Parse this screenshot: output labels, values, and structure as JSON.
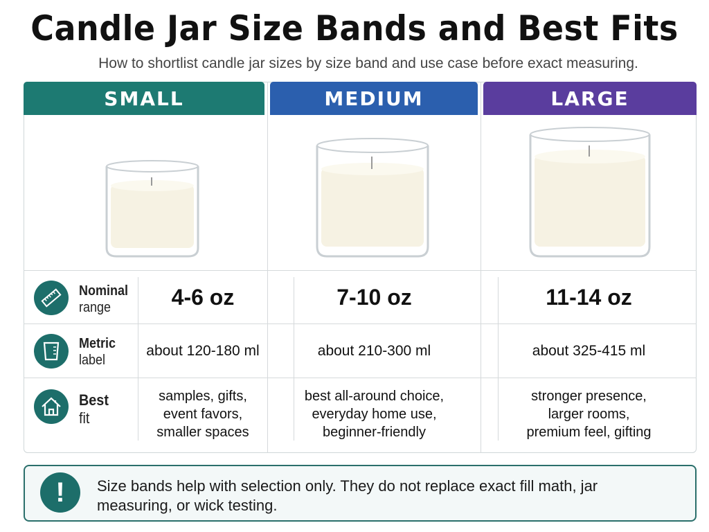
{
  "title": "Candle Jar Size Bands and Best Fits",
  "subtitle": "How to shortlist candle jar sizes by size band and use case before exact measuring.",
  "colors": {
    "small": "#1d7a72",
    "medium": "#2b5fae",
    "large": "#5a3d9e",
    "icon": "#1d6e6a"
  },
  "columns": [
    {
      "label": "SMALL",
      "nominal": "4-6 oz",
      "metric": "about 120-180 ml",
      "fit": [
        "samples, gifts,",
        "event favors,",
        "smaller spaces"
      ]
    },
    {
      "label": "MEDIUM",
      "nominal": "7-10 oz",
      "metric": "about 210-300 ml",
      "fit": [
        "best all-around choice,",
        "everyday home use,",
        "beginner-friendly"
      ]
    },
    {
      "label": "LARGE",
      "nominal": "11-14 oz",
      "metric": "about 325-415 ml",
      "fit": [
        "stronger presence,",
        "larger rooms,",
        "premium feel, gifting"
      ]
    }
  ],
  "rows": {
    "nominal": {
      "label1": "Nominal",
      "label2": "range",
      "icon": "ruler-icon"
    },
    "metric": {
      "label1": "Metric",
      "label2": "label",
      "icon": "measuring-cup-icon"
    },
    "fit": {
      "label1": "Best",
      "label2": "fit",
      "icon": "house-icon"
    }
  },
  "note": {
    "icon": "exclamation-icon",
    "text": "Size bands help with selection only. They do not replace exact fill math, jar measuring, or wick testing."
  }
}
